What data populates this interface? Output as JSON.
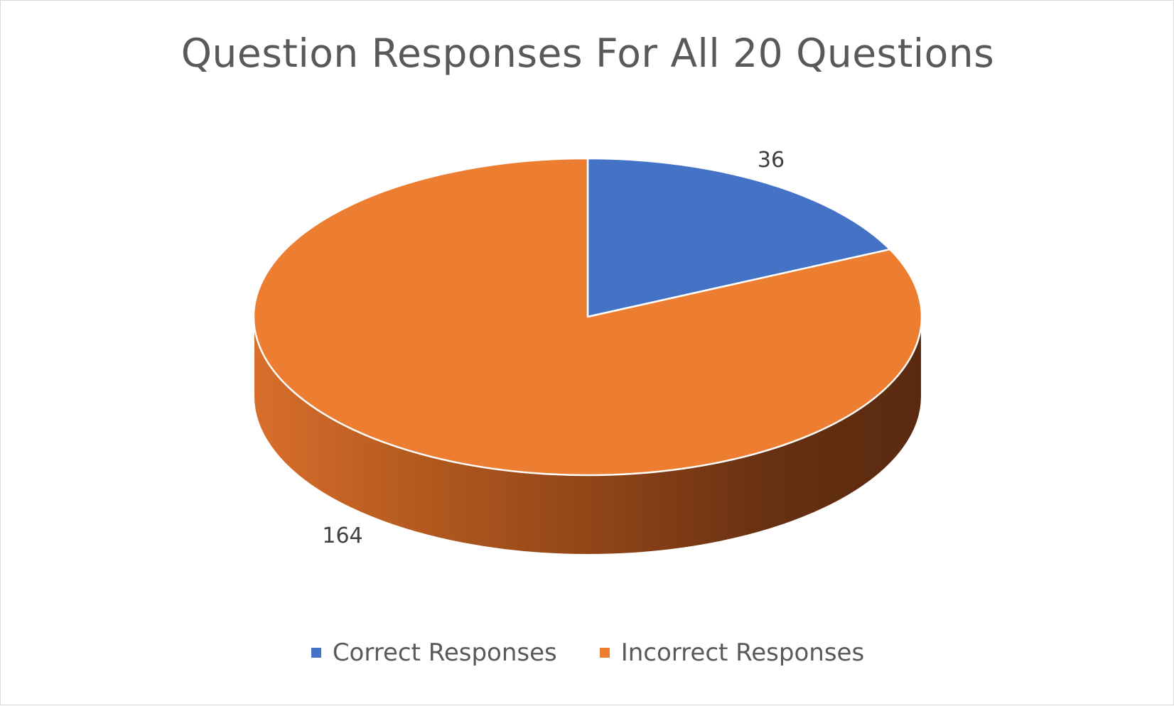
{
  "chart_data": {
    "type": "pie",
    "title": "Question Responses For All 20 Questions",
    "categories": [
      "Correct Responses",
      "Incorrect Responses"
    ],
    "values": [
      36,
      164
    ],
    "data_labels": [
      "36",
      "164"
    ],
    "colors": [
      "#4472c4",
      "#ed7d31"
    ],
    "three_d": true,
    "legend_position": "bottom"
  }
}
